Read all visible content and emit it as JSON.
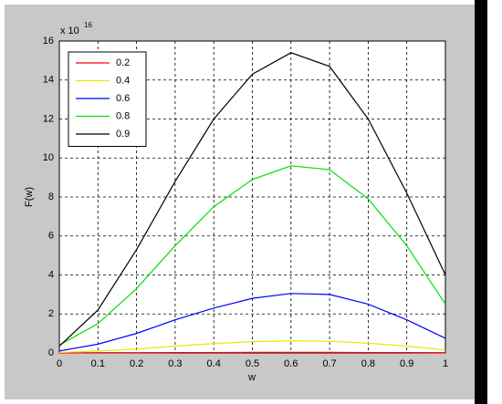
{
  "chart_data": {
    "type": "line",
    "x_label": "w",
    "y_label": "F(w)",
    "y_multiplier": "x 10",
    "y_exponent": "16",
    "x": [
      0,
      0.1,
      0.2,
      0.3,
      0.4,
      0.5,
      0.6,
      0.7,
      0.8,
      0.9,
      1
    ],
    "series": [
      {
        "name": "0.2",
        "color": "#ff0000",
        "values": [
          0,
          0.01,
          0.01,
          0.02,
          0.02,
          0.03,
          0.03,
          0.03,
          0.02,
          0.02,
          0.01
        ]
      },
      {
        "name": "0.4",
        "color": "#e8e800",
        "values": [
          0.02,
          0.1,
          0.2,
          0.35,
          0.48,
          0.58,
          0.62,
          0.6,
          0.5,
          0.35,
          0.15
        ]
      },
      {
        "name": "0.6",
        "color": "#0000ff",
        "values": [
          0.1,
          0.45,
          1.0,
          1.7,
          2.3,
          2.8,
          3.05,
          3.0,
          2.5,
          1.7,
          0.75
        ]
      },
      {
        "name": "0.8",
        "color": "#00e000",
        "values": [
          0.4,
          1.5,
          3.3,
          5.5,
          7.5,
          8.9,
          9.6,
          9.4,
          7.9,
          5.5,
          2.5
        ]
      },
      {
        "name": "0.9",
        "color": "#000000",
        "values": [
          0.35,
          2.2,
          5.3,
          8.8,
          12,
          14.3,
          15.4,
          14.7,
          12,
          8.2,
          4.0
        ]
      }
    ],
    "xlim": [
      0,
      1
    ],
    "xticks": [
      0,
      0.1,
      0.2,
      0.3,
      0.4,
      0.5,
      0.6,
      0.7,
      0.8,
      0.9,
      1
    ],
    "ylim": [
      0,
      16
    ],
    "yticks": [
      0,
      2,
      4,
      6,
      8,
      10,
      12,
      14,
      16
    ],
    "grid": true,
    "legend": "upper-left"
  }
}
